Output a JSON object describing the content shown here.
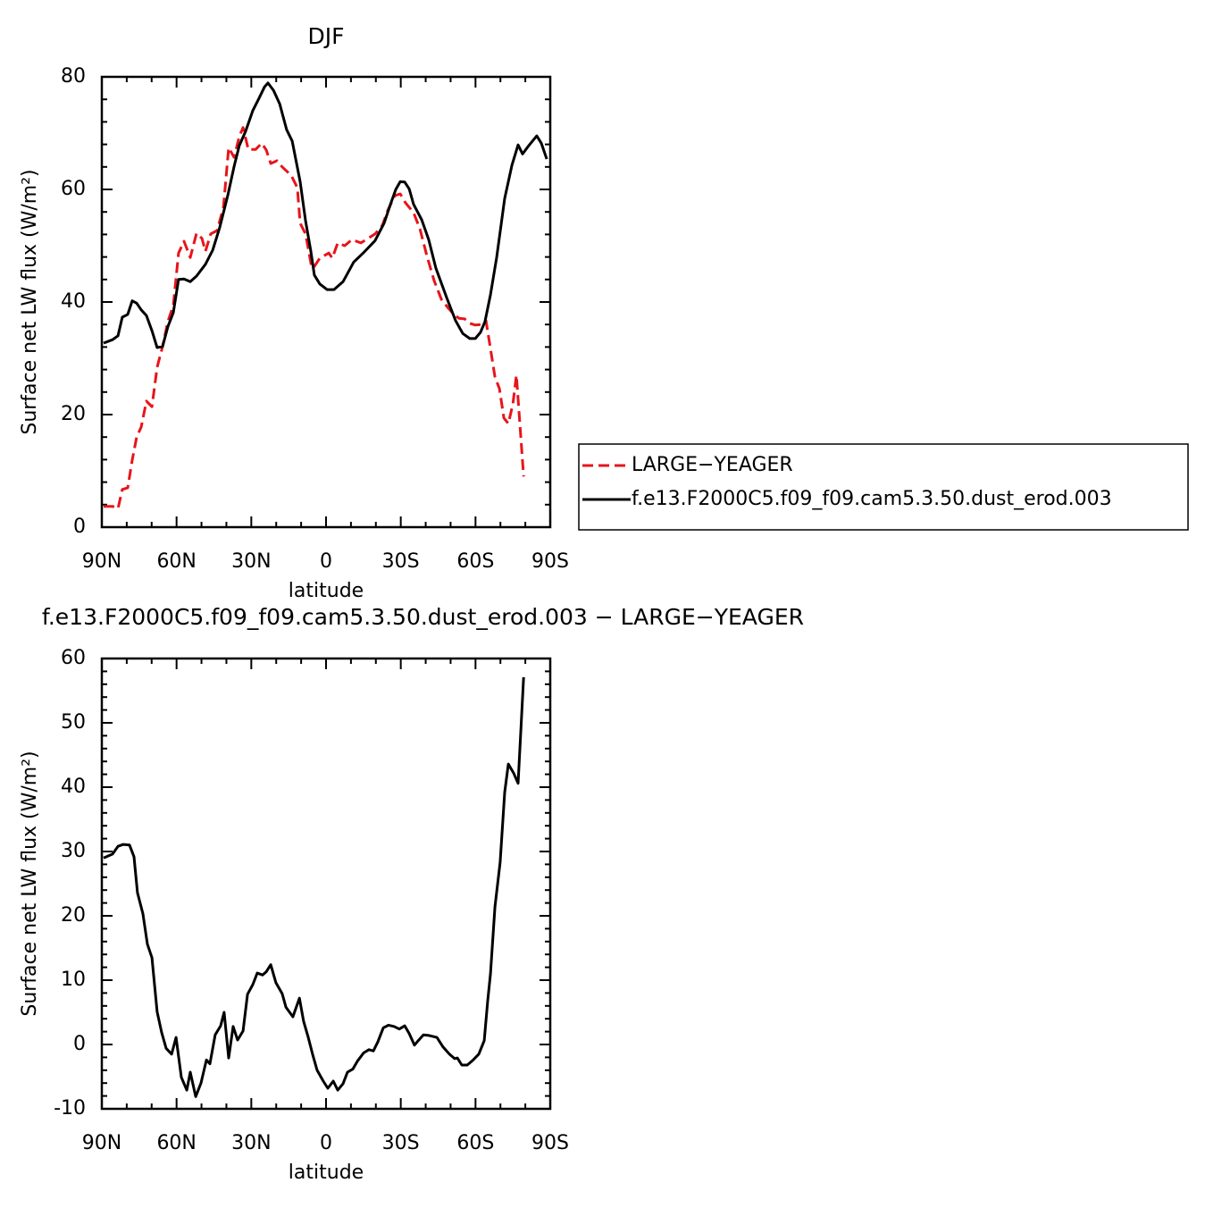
{
  "chart_data": [
    {
      "type": "line",
      "title": "DJF",
      "xlabel": "latitude",
      "ylabel": "Surface net LW flux (W/m²)",
      "xlim": [
        90,
        -90
      ],
      "ylim": [
        0,
        80
      ],
      "xticks": [
        {
          "value": 90,
          "label": "90N"
        },
        {
          "value": 60,
          "label": "60N"
        },
        {
          "value": 30,
          "label": "30N"
        },
        0,
        {
          "value": -30,
          "label": "30S"
        },
        {
          "value": -60,
          "label": "60S"
        },
        {
          "value": -90,
          "label": "90S"
        }
      ],
      "yticks": [
        0,
        20,
        40,
        60,
        80
      ],
      "legend": "right",
      "series": [
        {
          "name": "LARGE−YEAGER",
          "color": "#e8141a",
          "line_style": "dashed",
          "x": [
            89.3,
            85.7,
            83.5,
            81.8,
            79.6,
            77.8,
            76,
            74.2,
            72.1,
            69.9,
            67.8,
            65.6,
            63.5,
            61.3,
            59.2,
            57,
            54.5,
            52,
            49.8,
            48.4,
            46.3,
            43.7,
            41.2,
            39.1,
            36.9,
            34.8,
            33.3,
            31.2,
            28.3,
            25.8,
            24,
            22.2,
            19.7,
            17.6,
            14,
            11.5,
            10.4,
            8.2,
            5.7,
            4.7,
            2.5,
            -1.1,
            -2.5,
            -4.7,
            -7.5,
            -10.4,
            -14,
            -16.9,
            -19.7,
            -22.6,
            -24.8,
            -27.6,
            -29.8,
            -31.9,
            -35.1,
            -37.7,
            -40.5,
            -43.4,
            -46.3,
            -49.1,
            -51.3,
            -53.4,
            -55.6,
            -57.7,
            -59.9,
            -62,
            -64.2,
            -66,
            -67.8,
            -69.6,
            -71.4,
            -73.2,
            -75,
            -76.4,
            -78.2,
            -79.3
          ],
          "values": [
            3.7,
            3.7,
            3.3,
            6.7,
            7,
            11.9,
            16,
            17.8,
            22.4,
            21.4,
            28.4,
            32.1,
            36.5,
            39.4,
            48.7,
            50.8,
            47.9,
            52.2,
            51.3,
            49,
            52.1,
            52.7,
            56.8,
            67.4,
            65.7,
            69.4,
            71,
            67.1,
            67.1,
            68.2,
            67,
            64.6,
            65.1,
            64,
            62.5,
            60.3,
            54,
            52.1,
            46,
            46.3,
            47.8,
            48.7,
            47.8,
            50.5,
            50,
            51.1,
            50.5,
            51.3,
            52.1,
            53.6,
            56.3,
            58.9,
            59.2,
            57.6,
            55.9,
            53,
            48.2,
            43.8,
            40.5,
            38.9,
            37.8,
            37.1,
            37,
            36.2,
            35.9,
            36,
            36.7,
            31.7,
            26.7,
            24.6,
            19.4,
            18.4,
            21.9,
            27,
            15.9,
            9
          ]
        },
        {
          "name": "f.e13.F2000C5.f09_f09.cam5.3.50.dust_erod.003",
          "color": "#000000",
          "line_style": "solid",
          "x": [
            89.3,
            85.7,
            83.5,
            81.8,
            79.6,
            77.8,
            76,
            74.2,
            72.1,
            69.9,
            67.8,
            65.6,
            63.5,
            61.3,
            59.2,
            57,
            54.5,
            52,
            48.4,
            45.5,
            42.7,
            39.4,
            36.9,
            34.8,
            32.3,
            29.4,
            26.9,
            24.7,
            23.3,
            21.1,
            18.6,
            15.8,
            13.6,
            10.4,
            8.2,
            6.1,
            4.7,
            2.5,
            -0.4,
            -3.2,
            -6.8,
            -11.1,
            -15.4,
            -19.7,
            -23.3,
            -25.8,
            -28,
            -29.8,
            -31.6,
            -33.4,
            -35.1,
            -38.4,
            -41.2,
            -44.1,
            -48.4,
            -52,
            -54.9,
            -57.7,
            -59.9,
            -62,
            -63.8,
            -66,
            -68.5,
            -71.7,
            -74.6,
            -77.1,
            -78.9,
            -81.4,
            -84.6,
            -86.4,
            -88.6
          ],
          "values": [
            32.7,
            33.3,
            34,
            37.3,
            37.8,
            40.2,
            39.8,
            38.6,
            37.6,
            34.9,
            31.9,
            32.1,
            35.6,
            38.1,
            44,
            44.1,
            43.6,
            44.6,
            46.7,
            49.2,
            53.2,
            59,
            64.1,
            67.8,
            70.3,
            74,
            76.2,
            78.2,
            78.9,
            77.6,
            75.2,
            70.6,
            68.6,
            61.4,
            54.4,
            49,
            44.8,
            43.2,
            42.2,
            42.2,
            43.6,
            47.1,
            48.9,
            50.9,
            54,
            57.3,
            60,
            61.4,
            61.3,
            60.1,
            57.4,
            54.6,
            51.1,
            46,
            40.8,
            36.7,
            34.4,
            33.5,
            33.5,
            34.6,
            36.5,
            41.3,
            47.9,
            58.4,
            64.3,
            67.9,
            66.3,
            67.8,
            69.5,
            68.2,
            65.4
          ]
        }
      ]
    },
    {
      "type": "line",
      "title": "f.e13.F2000C5.f09_f09.cam5.3.50.dust_erod.003 − LARGE−YEAGER",
      "xlabel": "latitude",
      "ylabel": "Surface net LW flux (W/m²)",
      "xlim": [
        90,
        -90
      ],
      "ylim": [
        -10,
        60
      ],
      "xticks": [
        {
          "value": 90,
          "label": "90N"
        },
        {
          "value": 60,
          "label": "60N"
        },
        {
          "value": 30,
          "label": "30N"
        },
        0,
        {
          "value": -30,
          "label": "30S"
        },
        {
          "value": -60,
          "label": "60S"
        },
        {
          "value": -90,
          "label": "90S"
        }
      ],
      "yticks": [
        -10,
        0,
        10,
        20,
        30,
        40,
        50,
        60
      ],
      "series": [
        {
          "color": "#000000",
          "line_style": "solid",
          "x": [
            89.3,
            85.7,
            83.5,
            81.4,
            78.9,
            77.1,
            75.7,
            73.5,
            71.7,
            69.9,
            67.8,
            66,
            64.2,
            62,
            60.2,
            58.1,
            55.9,
            54.5,
            52.3,
            50.2,
            48,
            46.6,
            44.5,
            42.3,
            40.9,
            39.1,
            37.3,
            35.5,
            33.3,
            31.5,
            29.4,
            27.6,
            25.5,
            24,
            22.2,
            20.1,
            17.6,
            16.1,
            13.3,
            10.7,
            9,
            7.2,
            5.4,
            3.6,
            1.1,
            -0.7,
            -2.9,
            -4.7,
            -6.8,
            -8.6,
            -10.8,
            -12.6,
            -15.1,
            -17.2,
            -19,
            -20.8,
            -23,
            -25.1,
            -27.3,
            -29.4,
            -31.6,
            -33.4,
            -35.5,
            -37,
            -39.1,
            -41.3,
            -44.5,
            -47,
            -49.5,
            -51.6,
            -52.7,
            -54.5,
            -56.7,
            -58.8,
            -61.3,
            -63.5,
            -64.9,
            -66,
            -67.8,
            -69.9,
            -71.7,
            -73.2,
            -75.3,
            -77.1,
            -79.3
          ],
          "values": [
            29,
            29.6,
            30.8,
            31.1,
            31,
            29.2,
            23.6,
            20.3,
            15.6,
            13.5,
            5.1,
            1.9,
            -0.6,
            -1.5,
            1.1,
            -5.1,
            -7.1,
            -4.3,
            -8.1,
            -6,
            -2.4,
            -3,
            1.5,
            2.9,
            5,
            -2.1,
            2.8,
            0.7,
            2.1,
            7.8,
            9.3,
            11.1,
            10.8,
            11.3,
            12.4,
            9.6,
            7.9,
            5.8,
            4.3,
            7.2,
            3.6,
            1.2,
            -1.5,
            -4,
            -5.7,
            -6.8,
            -5.7,
            -7.1,
            -6.1,
            -4.3,
            -3.8,
            -2.6,
            -1.3,
            -0.8,
            -1,
            0.4,
            2.6,
            3,
            2.8,
            2.4,
            2.9,
            1.7,
            -0.1,
            0.6,
            1.5,
            1.4,
            1.1,
            -0.4,
            -1.5,
            -2.2,
            -2.1,
            -3.2,
            -3.2,
            -2.5,
            -1.5,
            0.6,
            6.8,
            11,
            21.4,
            28.3,
            39.2,
            43.6,
            42.2,
            40.6,
            57.1
          ]
        }
      ]
    }
  ]
}
